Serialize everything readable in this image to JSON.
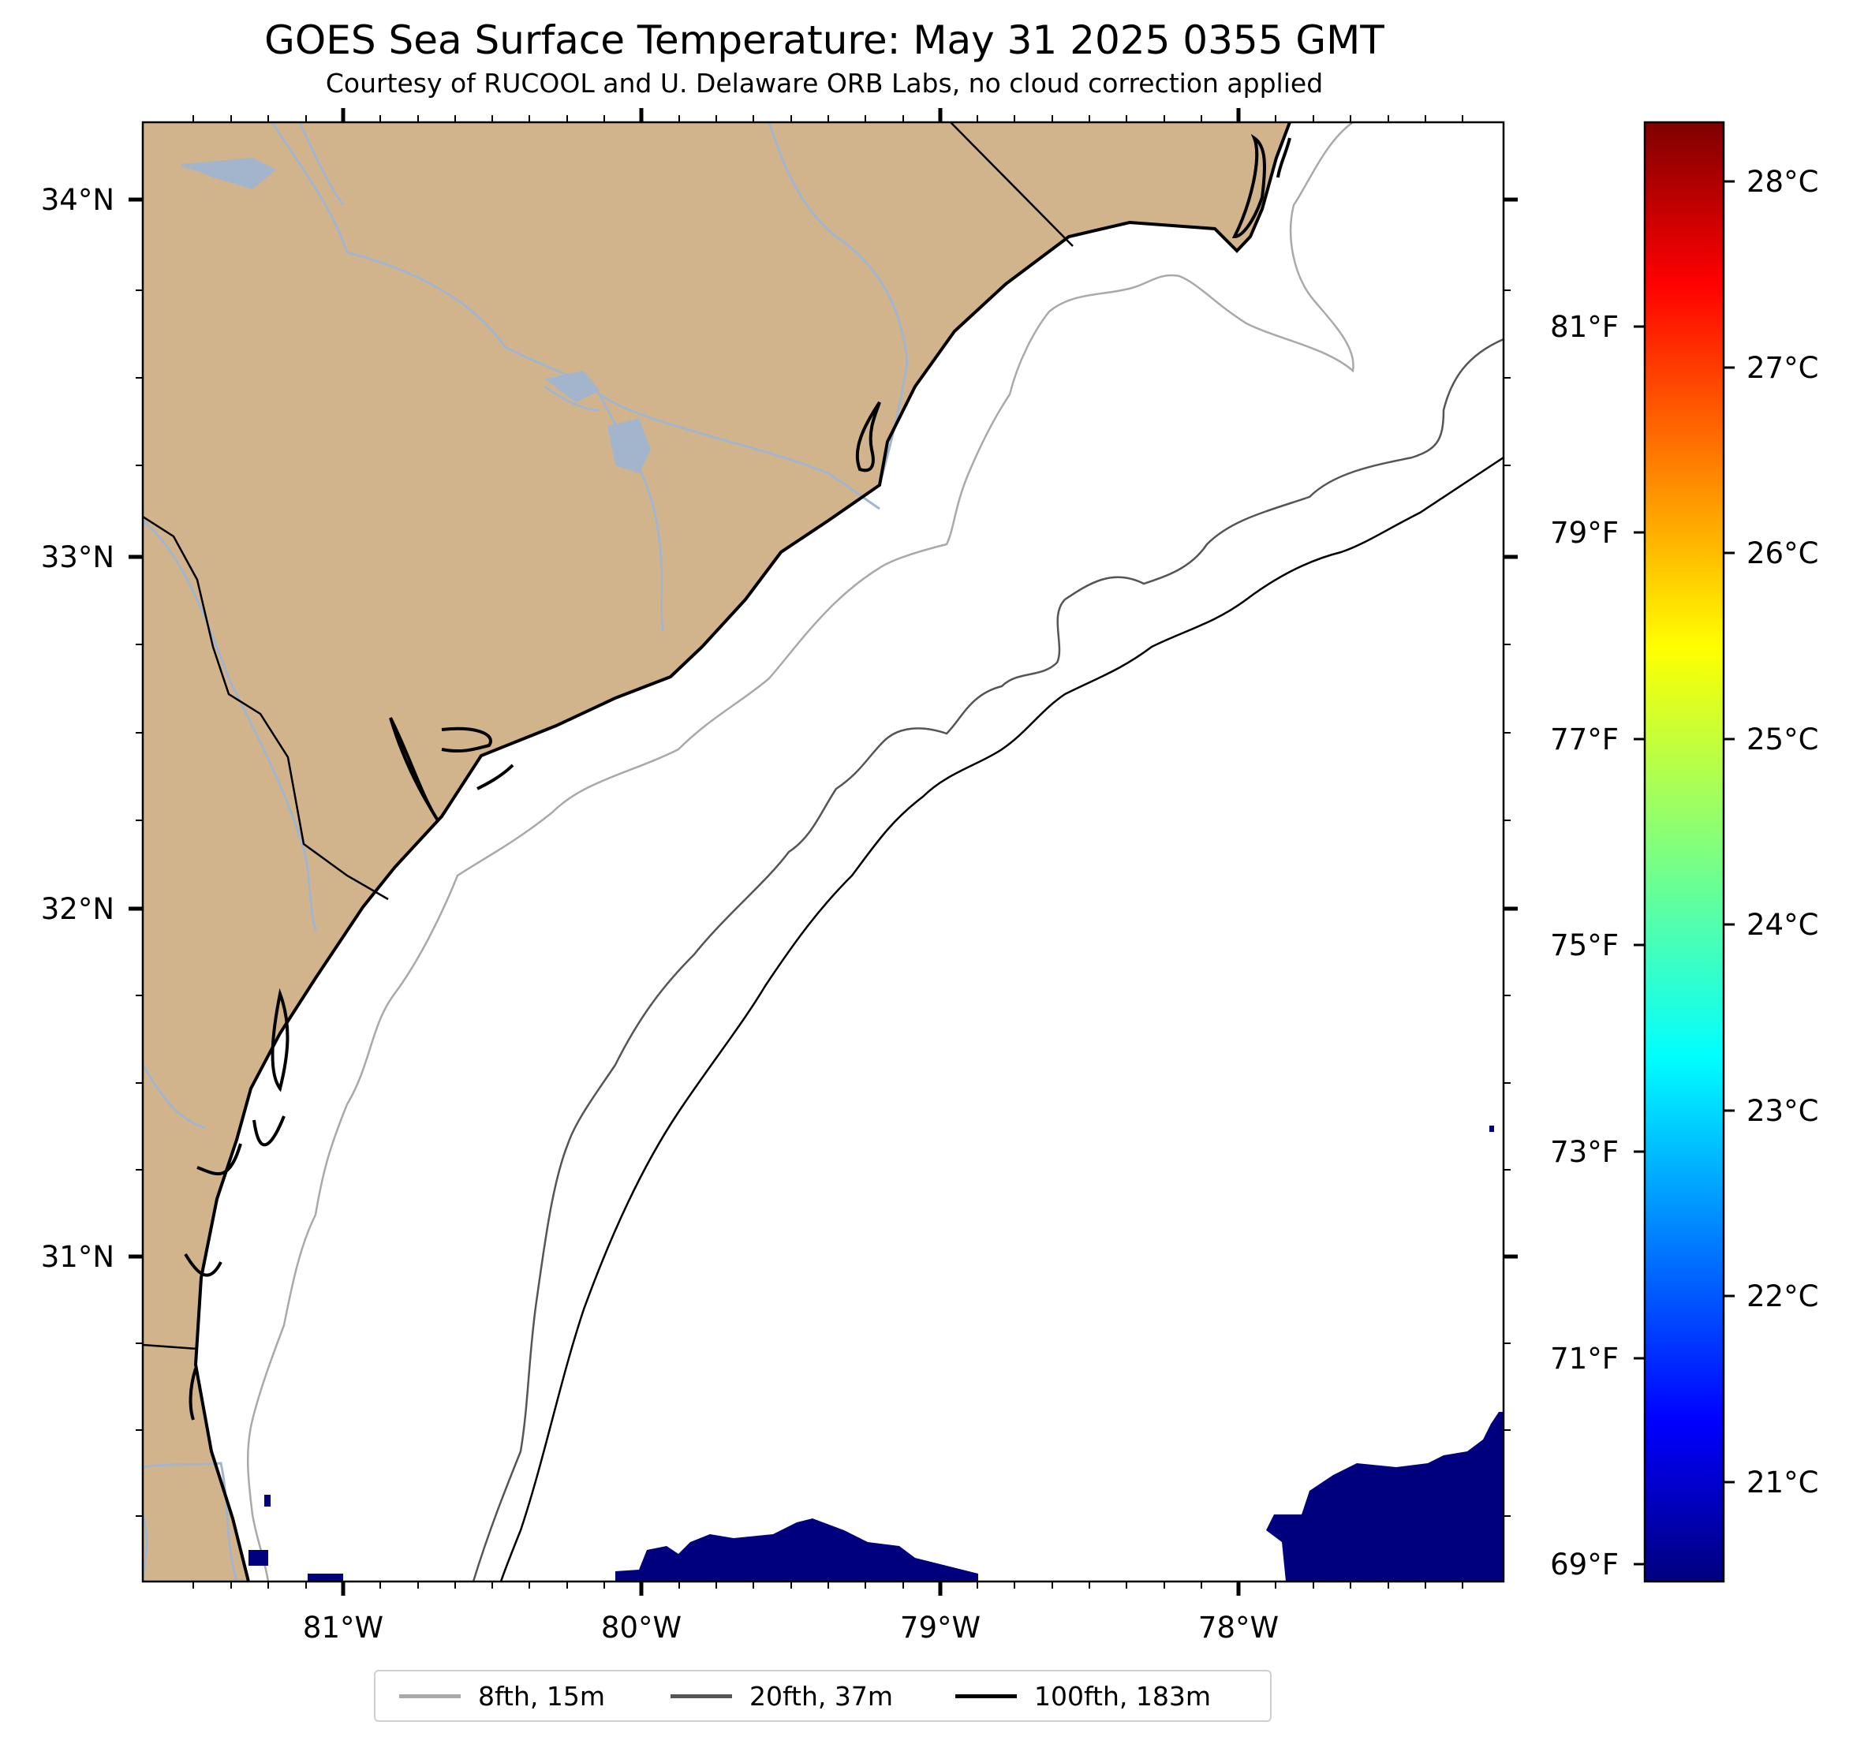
{
  "title": "GOES Sea Surface Temperature: May 31 2025 0355 GMT",
  "subtitle": "Courtesy of RUCOOL and U. Delaware ORB Labs, no cloud correction applied",
  "map": {
    "lat_ticks": [
      "34°N",
      "33°N",
      "32°N",
      "31°N"
    ],
    "lon_ticks": [
      "81°W",
      "80°W",
      "79°W",
      "78°W"
    ],
    "land_color": "#d2b48c",
    "river_color": "#a2b5cd",
    "coast_color": "#000000",
    "cold_water_color": "#00007f"
  },
  "colorbar": {
    "celsius_ticks": [
      "28°C",
      "27°C",
      "26°C",
      "25°C",
      "24°C",
      "23°C",
      "22°C",
      "21°C"
    ],
    "fahrenheit_ticks": [
      "81°F",
      "79°F",
      "77°F",
      "75°F",
      "73°F",
      "71°F",
      "69°F"
    ],
    "colormap": "jet"
  },
  "legend": {
    "items": [
      {
        "label": "8fth, 15m",
        "color": "#a9a9a9"
      },
      {
        "label": "20fth, 37m",
        "color": "#555555"
      },
      {
        "label": "100fth, 183m",
        "color": "#000000"
      }
    ]
  }
}
